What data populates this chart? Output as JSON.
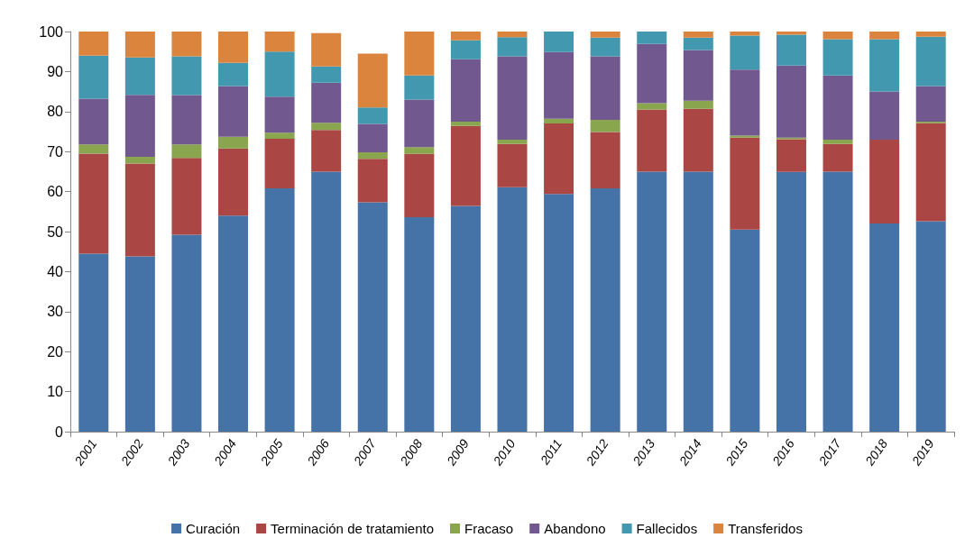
{
  "chart_data": {
    "type": "bar",
    "stacked": true,
    "categories": [
      "2001",
      "2002",
      "2003",
      "2004",
      "2005",
      "2006",
      "2007",
      "2008",
      "2009",
      "2010",
      "2011",
      "2012",
      "2013",
      "2014",
      "2015",
      "2016",
      "2017",
      "2018",
      "2019"
    ],
    "series": [
      {
        "name": "Curación",
        "color": "#4572a7",
        "values": [
          44.5,
          43.8,
          49.2,
          54,
          60.8,
          65,
          57.3,
          53.6,
          56.4,
          61.1,
          59.4,
          60.8,
          65,
          65,
          50.5,
          64.9,
          65,
          52,
          52.6
        ]
      },
      {
        "name": "Terminación de tratamiento",
        "color": "#aa4643",
        "values": [
          25,
          23.2,
          19.2,
          16.8,
          12.4,
          10.4,
          10.9,
          15.8,
          20,
          10.8,
          17.6,
          14.1,
          15.5,
          15.7,
          23,
          8.2,
          6.9,
          21,
          24.5
        ]
      },
      {
        "name": "Fracaso",
        "color": "#89a54e",
        "values": [
          2.3,
          1.7,
          3.4,
          2.9,
          1.5,
          1.8,
          1.6,
          1.7,
          1.1,
          1.1,
          1.2,
          3,
          1.6,
          2,
          0.5,
          0.4,
          1.1,
          0,
          0.4
        ]
      },
      {
        "name": "Abandono",
        "color": "#71588f",
        "values": [
          11.4,
          15.5,
          12.3,
          12.7,
          9,
          10,
          7.1,
          11.9,
          15.6,
          20.8,
          16.7,
          15.9,
          14.8,
          12.7,
          16.5,
          18,
          16,
          12,
          8.9
        ]
      },
      {
        "name": "Fallecidos",
        "color": "#4198af",
        "values": [
          10.8,
          9.3,
          9.7,
          5.8,
          11.3,
          4.1,
          4.1,
          6,
          4.7,
          4.8,
          5.1,
          4.7,
          3.1,
          3.1,
          8.5,
          7.7,
          9.1,
          13.1,
          12.3
        ]
      },
      {
        "name": "Transferidos",
        "color": "#db843d",
        "values": [
          6,
          6.5,
          6.2,
          7.8,
          5,
          8.3,
          13.5,
          11,
          2.2,
          1.4,
          0,
          1.5,
          0,
          1.5,
          1,
          0.8,
          1.9,
          1.9,
          1.3
        ]
      }
    ],
    "ylim": [
      0,
      100
    ],
    "yticks": [
      0,
      10,
      20,
      30,
      40,
      50,
      60,
      70,
      80,
      90,
      100
    ],
    "grid": false,
    "legend": "bottom"
  }
}
